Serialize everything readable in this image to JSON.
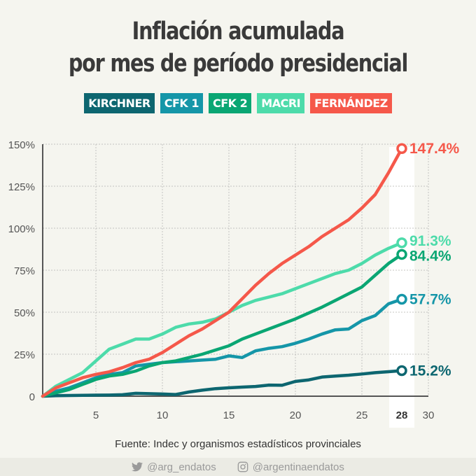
{
  "title_line1": "Inflación acumulada",
  "title_line2": "por mes de período presidencial",
  "legend": [
    {
      "label": "KIRCHNER",
      "color": "#0d6670"
    },
    {
      "label": "CFK 1",
      "color": "#1596a8"
    },
    {
      "label": "CFK 2",
      "color": "#0aa673"
    },
    {
      "label": "MACRI",
      "color": "#4ddbaa"
    },
    {
      "label": "FERNÁNDEZ",
      "color": "#f5584a"
    }
  ],
  "footer": {
    "source": "Fuente: Indec y organismos estadísticos provinciales",
    "twitter": "@arg_endatos",
    "instagram": "@argentinaendatos"
  },
  "chart_data": {
    "type": "line",
    "title": "Inflación acumulada por mes de período presidencial",
    "xlabel": "",
    "ylabel": "",
    "xlim": [
      1,
      30
    ],
    "ylim": [
      0,
      150
    ],
    "xticks": [
      5,
      10,
      15,
      20,
      25,
      28,
      30
    ],
    "highlight_x": 28,
    "yticks": [
      0,
      25,
      50,
      75,
      100,
      125,
      150
    ],
    "ytick_labels": [
      "0",
      "25%",
      "50%",
      "75%",
      "100%",
      "125%",
      "150%"
    ],
    "grid": true,
    "legend_position": "top",
    "x": [
      1,
      2,
      3,
      4,
      5,
      6,
      7,
      8,
      9,
      10,
      11,
      12,
      13,
      14,
      15,
      16,
      17,
      18,
      19,
      20,
      21,
      22,
      23,
      24,
      25,
      26,
      27,
      28
    ],
    "series": [
      {
        "name": "KIRCHNER",
        "color": "#0d6670",
        "end_label": "15.2%",
        "values": [
          0,
          0.3,
          0.4,
          0.5,
          0.6,
          0.7,
          0.9,
          1.7,
          1.5,
          1.3,
          1.0,
          2.5,
          3.6,
          4.5,
          5.0,
          5.4,
          5.8,
          6.6,
          6.5,
          8.8,
          9.7,
          11.4,
          12.0,
          12.5,
          13.2,
          14.0,
          14.6,
          15.2
        ]
      },
      {
        "name": "CFK 1",
        "color": "#1596a8",
        "end_label": "57.7%",
        "values": [
          0,
          3,
          5,
          8,
          11,
          13,
          14,
          18,
          19,
          20,
          20.5,
          21,
          21.5,
          22,
          24,
          23,
          27,
          28.5,
          29.5,
          31.5,
          34,
          37,
          39.5,
          40,
          45,
          48,
          55,
          57.7
        ]
      },
      {
        "name": "CFK 2",
        "color": "#0aa673",
        "end_label": "84.4%",
        "values": [
          0,
          2,
          4,
          7,
          10,
          12,
          13,
          15,
          18,
          20,
          21,
          23,
          25,
          27.5,
          30,
          34,
          37,
          40,
          43,
          46,
          49.5,
          53,
          57,
          61,
          65,
          72,
          79,
          84.4
        ]
      },
      {
        "name": "MACRI",
        "color": "#4ddbaa",
        "end_label": "91.3%",
        "values": [
          0,
          6,
          10,
          14,
          21,
          28,
          31,
          34,
          34,
          37,
          41,
          43,
          44,
          46,
          50,
          54,
          57,
          59,
          61,
          64,
          67,
          70,
          73,
          75,
          79,
          84,
          88,
          91.3
        ]
      },
      {
        "name": "FERNÁNDEZ",
        "color": "#f5584a",
        "end_label": "147.4%",
        "values": [
          0,
          5,
          8,
          11,
          13,
          14.5,
          17,
          20,
          22,
          26,
          31,
          36,
          40,
          45,
          50,
          58,
          66,
          73,
          79,
          84,
          89,
          95,
          100,
          105,
          112,
          120,
          133,
          147.4
        ]
      }
    ]
  }
}
